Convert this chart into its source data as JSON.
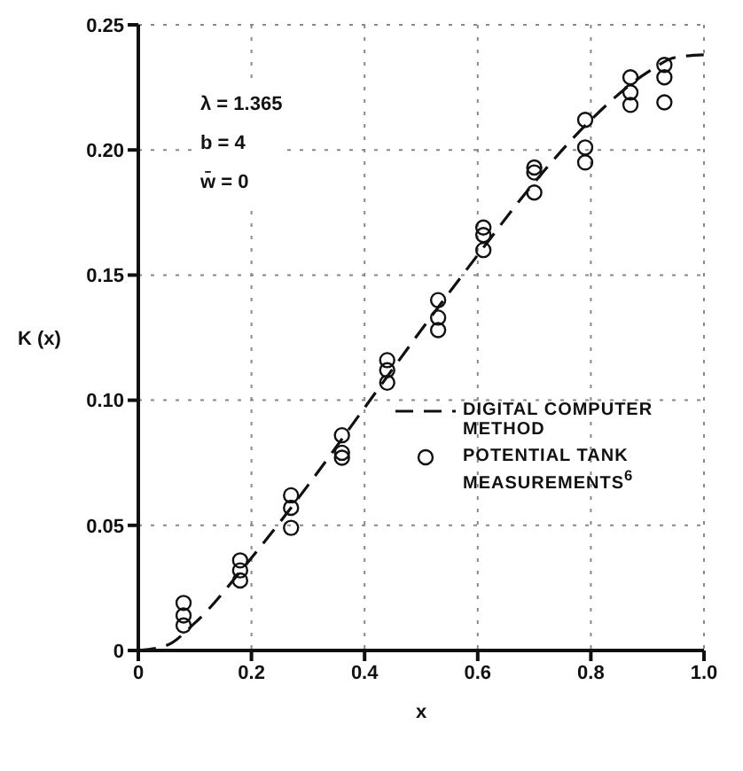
{
  "chart_data": {
    "type": "scatter",
    "xlabel": "x",
    "ylabel": "K (x)",
    "annotations": [
      "λ = 1.365",
      "b = 4",
      "w̄ = 0"
    ],
    "xlim": [
      0,
      1
    ],
    "xticks": [
      0,
      0.2,
      0.4,
      0.6,
      0.8,
      {
        "value": 1,
        "label": "1.0"
      }
    ],
    "ylim": [
      0,
      0.25
    ],
    "yticks": [
      0,
      0.05,
      {
        "value": 0.1,
        "label": "0.10"
      },
      0.15,
      {
        "value": 0.2,
        "label": "0.20"
      },
      0.25
    ],
    "grid": true,
    "legend": "bottom right",
    "series": [
      {
        "name": "DIGITAL COMPUTER METHOD",
        "type": "line",
        "line_style": "dashed",
        "marker": "none",
        "color": "#111111",
        "x": [
          0,
          0.05,
          0.1,
          0.2,
          0.3,
          0.4,
          0.5,
          0.6,
          0.7,
          0.8,
          0.9,
          0.95,
          1.0
        ],
        "values": [
          0,
          0.002,
          0.011,
          0.037,
          0.066,
          0.097,
          0.128,
          0.158,
          0.187,
          0.212,
          0.231,
          0.237,
          0.238
        ]
      },
      {
        "name": "POTENTIAL TANK MEASUREMENTS$^{6}$",
        "marker": "circle",
        "color": "#111111",
        "x": [
          0.08,
          0.08,
          0.08,
          0.18,
          0.18,
          0.18,
          0.27,
          0.27,
          0.27,
          0.36,
          0.36,
          0.36,
          0.44,
          0.44,
          0.44,
          0.53,
          0.53,
          0.53,
          0.61,
          0.61,
          0.61,
          0.7,
          0.7,
          0.7,
          0.79,
          0.79,
          0.79,
          0.87,
          0.87,
          0.87,
          0.93,
          0.93,
          0.93
        ],
        "values": [
          0.019,
          0.014,
          0.01,
          0.036,
          0.032,
          0.028,
          0.062,
          0.057,
          0.049,
          0.086,
          0.079,
          0.077,
          0.116,
          0.112,
          0.107,
          0.14,
          0.133,
          0.128,
          0.169,
          0.166,
          0.16,
          0.193,
          0.191,
          0.183,
          0.212,
          0.201,
          0.195,
          0.229,
          0.223,
          0.218,
          0.234,
          0.229,
          0.219
        ]
      }
    ]
  }
}
